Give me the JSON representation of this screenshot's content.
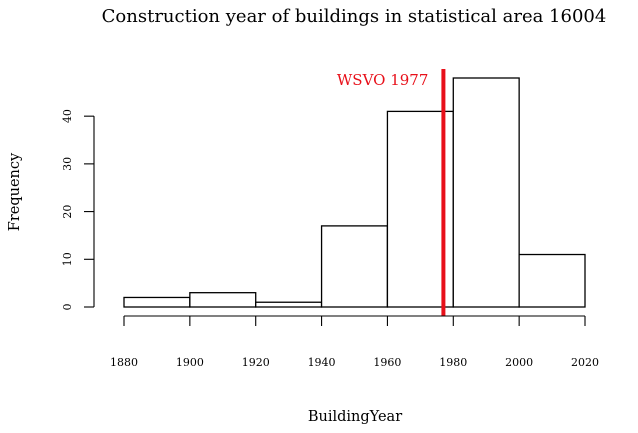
{
  "chart_data": {
    "type": "bar",
    "title": "Construction year of buildings in statistical area 16004",
    "xlabel": "BuildingYear",
    "ylabel": "Frequency",
    "bins": [
      {
        "x0": 1880,
        "x1": 1900,
        "count": 2
      },
      {
        "x0": 1900,
        "x1": 1920,
        "count": 3
      },
      {
        "x0": 1920,
        "x1": 1940,
        "count": 1
      },
      {
        "x0": 1940,
        "x1": 1960,
        "count": 17
      },
      {
        "x0": 1960,
        "x1": 1980,
        "count": 41
      },
      {
        "x0": 1980,
        "x1": 2000,
        "count": 48
      },
      {
        "x0": 2000,
        "x1": 2020,
        "count": 11
      }
    ],
    "xlim": [
      1880,
      2020
    ],
    "ylim": [
      0,
      48
    ],
    "x_ticks": [
      "1880",
      "1900",
      "1920",
      "1940",
      "1960",
      "1980",
      "2000",
      "2020"
    ],
    "y_ticks": [
      "0",
      "10",
      "20",
      "30",
      "40"
    ],
    "reference_line": {
      "x": 1977,
      "label": "WSVO 1977",
      "color": "#e8101a"
    },
    "grid": false
  }
}
